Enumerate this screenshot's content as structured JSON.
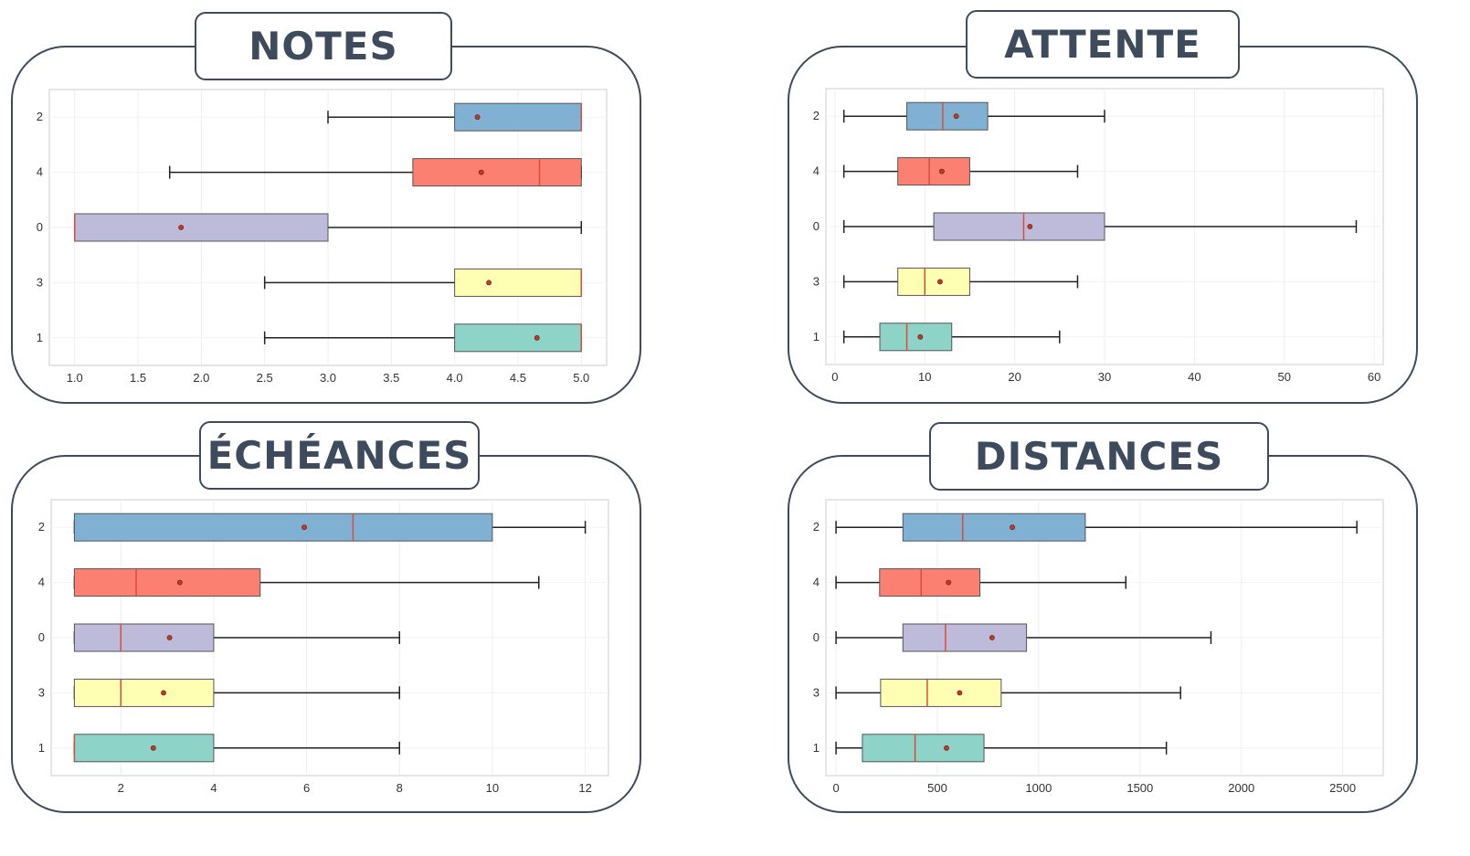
{
  "palette": {
    "frame": "#3d4b5c",
    "categories": {
      "2": "#80b1d3",
      "4": "#fb8072",
      "0": "#bebada",
      "3": "#ffffb3",
      "1": "#8dd3c7"
    },
    "median": "#d94c3d",
    "mean_dot": "#c0392b"
  },
  "chart_data": [
    {
      "id": "notes",
      "type": "boxplot",
      "orientation": "horizontal",
      "title": "NOTES",
      "categories": [
        "2",
        "4",
        "0",
        "3",
        "1"
      ],
      "xlim": [
        0.8,
        5.2
      ],
      "xticks": [
        1.0,
        1.5,
        2.0,
        2.5,
        3.0,
        3.5,
        4.0,
        4.5,
        5.0
      ],
      "tick_labels": [
        "1.0",
        "1.5",
        "2.0",
        "2.5",
        "3.0",
        "3.5",
        "4.0",
        "4.5",
        "5.0"
      ],
      "boxes": [
        {
          "category": "2",
          "min": 3.0,
          "q1": 4.0,
          "median": 5.0,
          "q3": 5.0,
          "max": 5.0,
          "mean": 4.18
        },
        {
          "category": "4",
          "min": 1.75,
          "q1": 3.67,
          "median": 4.67,
          "q3": 5.0,
          "max": 5.0,
          "mean": 4.21
        },
        {
          "category": "0",
          "min": 1.0,
          "q1": 1.0,
          "median": 1.0,
          "q3": 3.0,
          "max": 5.0,
          "mean": 1.84
        },
        {
          "category": "3",
          "min": 2.5,
          "q1": 4.0,
          "median": 5.0,
          "q3": 5.0,
          "max": 5.0,
          "mean": 4.27
        },
        {
          "category": "1",
          "min": 2.5,
          "q1": 4.0,
          "median": 5.0,
          "q3": 5.0,
          "max": 5.0,
          "mean": 4.65
        }
      ]
    },
    {
      "id": "attente",
      "type": "boxplot",
      "orientation": "horizontal",
      "title": "ATTENTE",
      "categories": [
        "2",
        "4",
        "0",
        "3",
        "1"
      ],
      "xlim": [
        -1,
        61
      ],
      "xticks": [
        0,
        10,
        20,
        30,
        40,
        50,
        60
      ],
      "tick_labels": [
        "0",
        "10",
        "20",
        "30",
        "40",
        "50",
        "60"
      ],
      "boxes": [
        {
          "category": "2",
          "min": 1,
          "q1": 8,
          "median": 12,
          "q3": 17,
          "max": 30,
          "mean": 13.5
        },
        {
          "category": "4",
          "min": 1,
          "q1": 7,
          "median": 10.5,
          "q3": 15,
          "max": 27,
          "mean": 11.9
        },
        {
          "category": "0",
          "min": 1,
          "q1": 11,
          "median": 21,
          "q3": 30,
          "max": 58,
          "mean": 21.7
        },
        {
          "category": "3",
          "min": 1,
          "q1": 7,
          "median": 10,
          "q3": 15,
          "max": 27,
          "mean": 11.7
        },
        {
          "category": "1",
          "min": 1,
          "q1": 5,
          "median": 8,
          "q3": 13,
          "max": 25,
          "mean": 9.5
        }
      ]
    },
    {
      "id": "echeances",
      "type": "boxplot",
      "orientation": "horizontal",
      "title": "ÉCHÉANCES",
      "categories": [
        "2",
        "4",
        "0",
        "3",
        "1"
      ],
      "xlim": [
        0.5,
        12.5
      ],
      "xticks": [
        2,
        4,
        6,
        8,
        10,
        12
      ],
      "tick_labels": [
        "2",
        "4",
        "6",
        "8",
        "10",
        "12"
      ],
      "boxes": [
        {
          "category": "2",
          "min": 1,
          "q1": 1,
          "median": 7,
          "q3": 10,
          "max": 12,
          "mean": 5.95
        },
        {
          "category": "4",
          "min": 1,
          "q1": 1,
          "median": 2.33,
          "q3": 5,
          "max": 11,
          "mean": 3.27
        },
        {
          "category": "0",
          "min": 1,
          "q1": 1,
          "median": 2,
          "q3": 4,
          "max": 8,
          "mean": 3.05
        },
        {
          "category": "3",
          "min": 1,
          "q1": 1,
          "median": 2,
          "q3": 4,
          "max": 8,
          "mean": 2.92
        },
        {
          "category": "1",
          "min": 1,
          "q1": 1,
          "median": 1,
          "q3": 4,
          "max": 8,
          "mean": 2.7
        }
      ]
    },
    {
      "id": "distances",
      "type": "boxplot",
      "orientation": "horizontal",
      "title": "DISTANCES",
      "categories": [
        "2",
        "4",
        "0",
        "3",
        "1"
      ],
      "xlim": [
        -50,
        2700
      ],
      "xticks": [
        0,
        500,
        1000,
        1500,
        2000,
        2500
      ],
      "tick_labels": [
        "0",
        "500",
        "1000",
        "1500",
        "2000",
        "2500"
      ],
      "boxes": [
        {
          "category": "2",
          "min": 0,
          "q1": 330,
          "median": 625,
          "q3": 1230,
          "max": 2570,
          "mean": 870
        },
        {
          "category": "4",
          "min": 0,
          "q1": 215,
          "median": 420,
          "q3": 710,
          "max": 1430,
          "mean": 555
        },
        {
          "category": "0",
          "min": 0,
          "q1": 330,
          "median": 540,
          "q3": 940,
          "max": 1850,
          "mean": 770
        },
        {
          "category": "3",
          "min": 0,
          "q1": 220,
          "median": 450,
          "q3": 815,
          "max": 1700,
          "mean": 610
        },
        {
          "category": "1",
          "min": 0,
          "q1": 130,
          "median": 390,
          "q3": 730,
          "max": 1630,
          "mean": 545
        }
      ]
    }
  ]
}
